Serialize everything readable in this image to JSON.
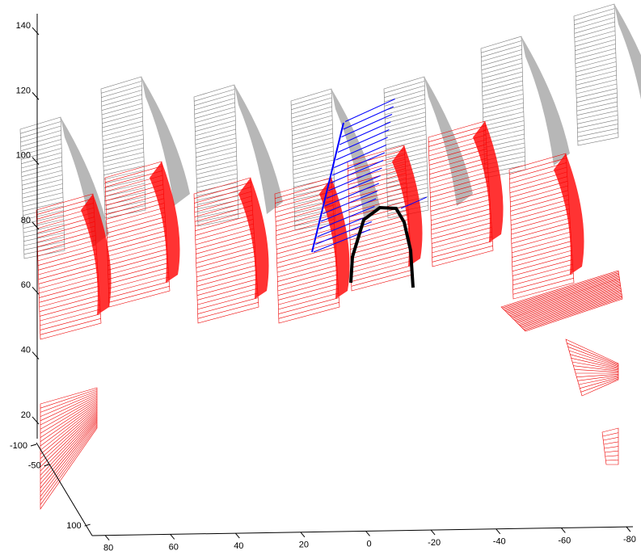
{
  "chart_data": {
    "type": "mesh3d",
    "zlim": [
      14,
      145
    ],
    "zticks": [
      20,
      40,
      60,
      80,
      100,
      120,
      140
    ],
    "xlim": [
      84,
      -82
    ],
    "xticks": [
      80,
      60,
      40,
      20,
      0,
      -20,
      -40,
      -60,
      -80
    ],
    "ylim": [
      -100,
      110
    ],
    "yticks": [
      -100,
      -50,
      100
    ],
    "grid": false
  }
}
